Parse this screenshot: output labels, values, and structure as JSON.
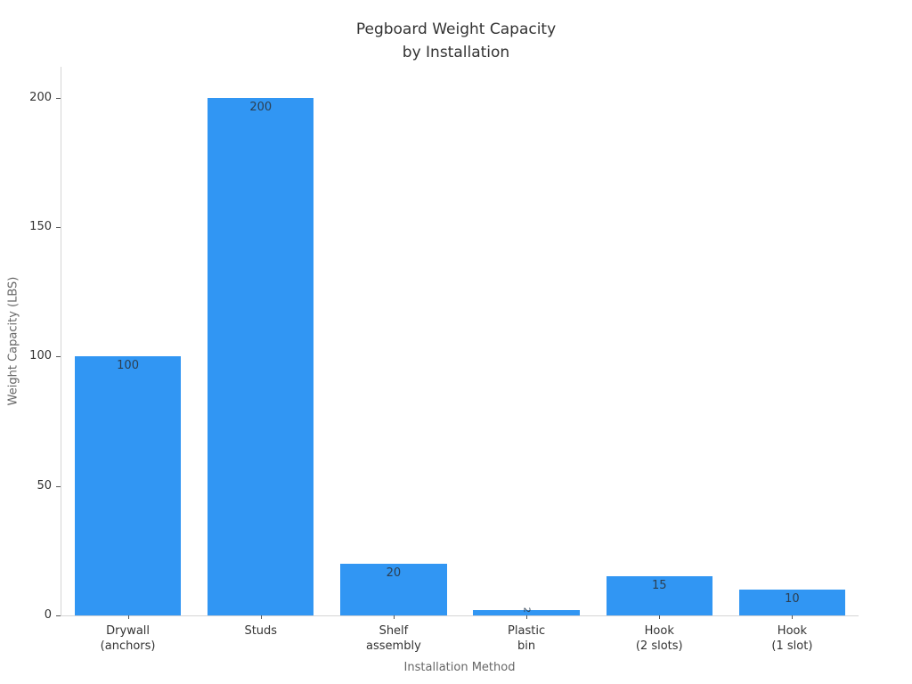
{
  "chart_data": {
    "type": "bar",
    "title": "Pegboard Weight Capacity\nby Installation",
    "categories": [
      "Drywall\n(anchors)",
      "Studs",
      "Shelf\nassembly",
      "Plastic\nbin",
      "Hook\n(2 slots)",
      "Hook\n(1 slot)"
    ],
    "values": [
      100,
      200,
      20,
      2,
      15,
      10
    ],
    "bar_value_labels": [
      "100",
      "200",
      "20",
      "2",
      "15",
      "10"
    ],
    "xlabel": "Installation Method",
    "ylabel": "Weight Capacity (LBS)",
    "yticks": [
      0,
      50,
      100,
      150,
      200
    ],
    "ylim": [
      0,
      212
    ],
    "grid": false,
    "legend_position": "none",
    "bar_color": "#3196F3",
    "title_color": "#333333",
    "tick_label_color": "#333333",
    "value_label_color": "#2c3e50",
    "axis_title_color": "#666666",
    "spine_color": "#d4d4d4",
    "tick_mark_color": "#555555"
  }
}
